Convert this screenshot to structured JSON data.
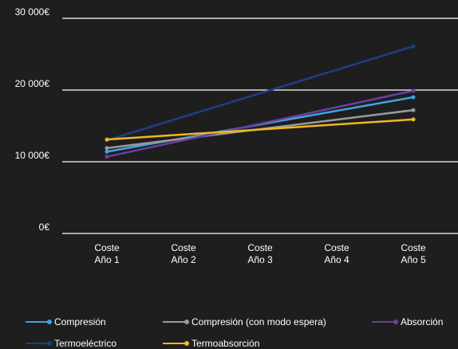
{
  "chart_data": {
    "type": "line",
    "categories": [
      "Coste\nAño 1",
      "Coste\nAño 2",
      "Coste\nAño 3",
      "Coste\nAño 4",
      "Coste\nAño 5"
    ],
    "yticks": [
      0,
      10000,
      20000,
      30000
    ],
    "ytick_labels": [
      "0€",
      "10 000€",
      "20 000€",
      "30 000€"
    ],
    "ylim": [
      0,
      30000
    ],
    "grid": true,
    "legend_position": "bottom",
    "series": [
      {
        "name": "Compresión",
        "color": "#3fa4e0",
        "values": [
          11400,
          null,
          null,
          null,
          19000
        ]
      },
      {
        "name": "Compresión (con modo espera)",
        "color": "#9a9a9a",
        "values": [
          11900,
          null,
          null,
          null,
          17200
        ]
      },
      {
        "name": "Absorción",
        "color": "#6a3fa0",
        "values": [
          10700,
          null,
          null,
          null,
          19900
        ]
      },
      {
        "name": "Termoeléctrico",
        "color": "#1f3d8c",
        "values": [
          13000,
          null,
          null,
          null,
          26100
        ]
      },
      {
        "name": "Termoabsorción",
        "color": "#f0b722",
        "values": [
          13100,
          null,
          null,
          null,
          15900
        ]
      }
    ]
  }
}
